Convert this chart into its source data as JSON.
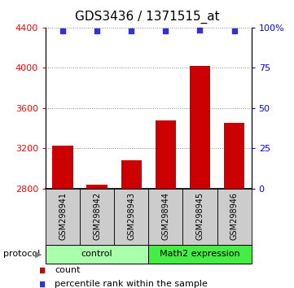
{
  "title": "GDS3436 / 1371515_at",
  "samples": [
    "GSM298941",
    "GSM298942",
    "GSM298943",
    "GSM298944",
    "GSM298945",
    "GSM298946"
  ],
  "counts": [
    3230,
    2840,
    3080,
    3480,
    4020,
    3450
  ],
  "percentile_ranks": [
    98,
    98,
    98,
    98,
    98.5,
    98
  ],
  "ylim_left": [
    2800,
    4400
  ],
  "ylim_right": [
    0,
    100
  ],
  "yticks_left": [
    2800,
    3200,
    3600,
    4000,
    4400
  ],
  "yticks_right": [
    0,
    25,
    50,
    75,
    100
  ],
  "ytick_right_labels": [
    "0",
    "25",
    "50",
    "75",
    "100%"
  ],
  "bar_color": "#cc0000",
  "dot_color": "#3333cc",
  "bar_bottom": 2800,
  "groups": [
    {
      "label": "control",
      "start": 0,
      "end": 3,
      "color": "#aaffaa"
    },
    {
      "label": "Math2 expression",
      "start": 3,
      "end": 6,
      "color": "#44ee44"
    }
  ],
  "protocol_label": "protocol",
  "legend_count_label": "count",
  "legend_percentile_label": "percentile rank within the sample",
  "xlabel_bg": "#cccccc",
  "title_fontsize": 11,
  "tick_fontsize": 8,
  "group_label_fontsize": 8,
  "dotted_grid_color": "#888888",
  "n_samples": 6
}
